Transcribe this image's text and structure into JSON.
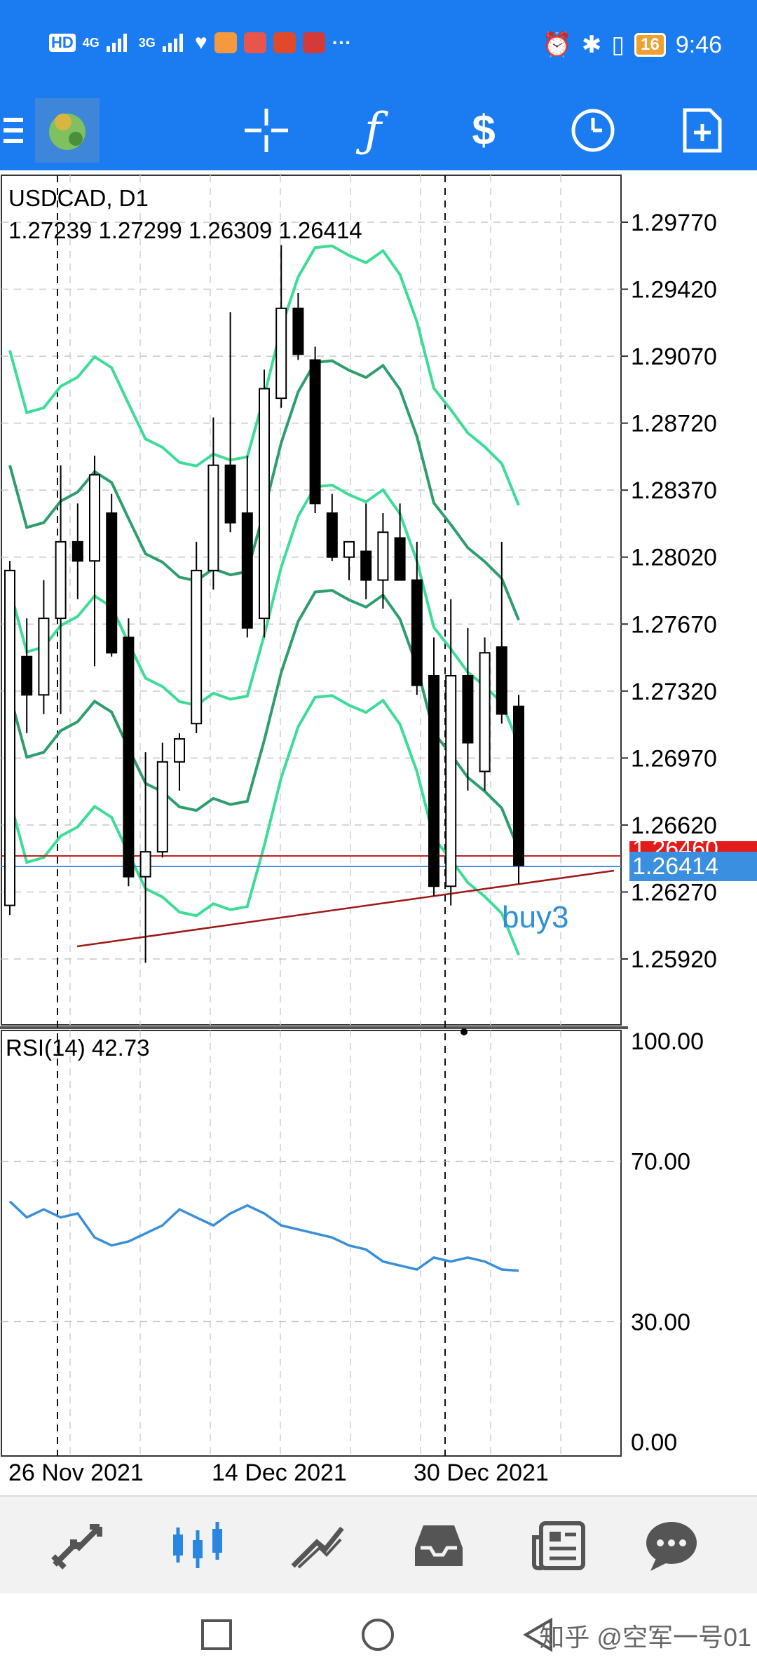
{
  "status_bar": {
    "network_left": "HD",
    "sim1": "4G",
    "sim2": "3G",
    "battery": "16",
    "time": "9:46",
    "more": "···"
  },
  "toolbar": {
    "icons": [
      "menu-icon",
      "app-logo",
      "crosshair-icon",
      "function-icon",
      "trade-icon",
      "clock-icon",
      "new-order-icon"
    ]
  },
  "chart": {
    "symbol_title": "USDCAD, D1",
    "ohlc": "1.27239 1.27299 1.26309 1.26414",
    "price_labels": [
      "1.29770",
      "1.29420",
      "1.29070",
      "1.28720",
      "1.28370",
      "1.28020",
      "1.27670",
      "1.27320",
      "1.26970",
      "1.26620",
      "1.26270",
      "1.25920"
    ],
    "current_price": "1.26414",
    "ask_price_partial": "1.26460",
    "annotation": "buy3",
    "rsi_title": "RSI(14) 42.73",
    "rsi_levels": [
      "100.00",
      "70.00",
      "30.00",
      "0.00"
    ],
    "date_labels": [
      "26 Nov 2021",
      "14 Dec 2021",
      "30 Dec 2021"
    ],
    "colors": {
      "bull": "#ffffff",
      "bear": "#000000",
      "band_light": "#3ddc97",
      "band_mid": "#2e9e6e",
      "rsi": "#3a8fd8",
      "bid_line": "#c02020",
      "ask_line": "#4a90d9",
      "trend": "#a01818"
    }
  },
  "bottom_nav": {
    "items": [
      "quotes",
      "chart",
      "trade",
      "history",
      "news",
      "messages"
    ]
  },
  "system_nav": {
    "watermark": "知乎 @空军一号01"
  },
  "chart_data": {
    "type": "candlestick",
    "title": "USDCAD, D1",
    "ylim": [
      1.2555,
      1.2995
    ],
    "candles": [
      {
        "o": 1.262,
        "h": 1.28,
        "l": 1.2615,
        "c": 1.2795
      },
      {
        "o": 1.275,
        "h": 1.277,
        "l": 1.271,
        "c": 1.273
      },
      {
        "o": 1.273,
        "h": 1.279,
        "l": 1.272,
        "c": 1.277
      },
      {
        "o": 1.277,
        "h": 1.285,
        "l": 1.272,
        "c": 1.281
      },
      {
        "o": 1.281,
        "h": 1.283,
        "l": 1.278,
        "c": 1.28
      },
      {
        "o": 1.28,
        "h": 1.2855,
        "l": 1.2745,
        "c": 1.2845
      },
      {
        "o": 1.2825,
        "h": 1.2835,
        "l": 1.275,
        "c": 1.2752
      },
      {
        "o": 1.276,
        "h": 1.277,
        "l": 1.263,
        "c": 1.2635
      },
      {
        "o": 1.2635,
        "h": 1.27,
        "l": 1.259,
        "c": 1.2648
      },
      {
        "o": 1.2648,
        "h": 1.2705,
        "l": 1.2645,
        "c": 1.2695
      },
      {
        "o": 1.2695,
        "h": 1.271,
        "l": 1.268,
        "c": 1.2707
      },
      {
        "o": 1.2715,
        "h": 1.281,
        "l": 1.271,
        "c": 1.2795
      },
      {
        "o": 1.2795,
        "h": 1.2875,
        "l": 1.2785,
        "c": 1.285
      },
      {
        "o": 1.285,
        "h": 1.293,
        "l": 1.2815,
        "c": 1.282
      },
      {
        "o": 1.2825,
        "h": 1.2855,
        "l": 1.276,
        "c": 1.2765
      },
      {
        "o": 1.277,
        "h": 1.29,
        "l": 1.276,
        "c": 1.289
      },
      {
        "o": 1.2885,
        "h": 1.2965,
        "l": 1.288,
        "c": 1.2932
      },
      {
        "o": 1.2932,
        "h": 1.294,
        "l": 1.2905,
        "c": 1.2908
      },
      {
        "o": 1.2905,
        "h": 1.2912,
        "l": 1.2825,
        "c": 1.283
      },
      {
        "o": 1.2825,
        "h": 1.2835,
        "l": 1.28,
        "c": 1.2802
      },
      {
        "o": 1.2802,
        "h": 1.281,
        "l": 1.279,
        "c": 1.281
      },
      {
        "o": 1.2805,
        "h": 1.283,
        "l": 1.278,
        "c": 1.279
      },
      {
        "o": 1.279,
        "h": 1.2825,
        "l": 1.2775,
        "c": 1.2815
      },
      {
        "o": 1.2812,
        "h": 1.283,
        "l": 1.279,
        "c": 1.279
      },
      {
        "o": 1.279,
        "h": 1.281,
        "l": 1.273,
        "c": 1.2735
      },
      {
        "o": 1.274,
        "h": 1.276,
        "l": 1.2625,
        "c": 1.263
      },
      {
        "o": 1.263,
        "h": 1.278,
        "l": 1.262,
        "c": 1.274
      },
      {
        "o": 1.274,
        "h": 1.2765,
        "l": 1.268,
        "c": 1.2705
      },
      {
        "o": 1.269,
        "h": 1.276,
        "l": 1.268,
        "c": 1.2752
      },
      {
        "o": 1.2755,
        "h": 1.281,
        "l": 1.2715,
        "c": 1.272
      },
      {
        "o": 1.2724,
        "h": 1.273,
        "l": 1.2631,
        "c": 1.2641
      }
    ],
    "rsi": [
      60,
      56,
      58,
      56,
      57,
      51,
      49,
      50,
      52,
      54,
      58,
      56,
      54,
      57,
      59,
      57,
      54,
      53,
      52,
      51,
      49,
      48,
      45,
      44,
      43,
      46,
      45,
      46,
      45,
      43,
      42.73
    ]
  }
}
